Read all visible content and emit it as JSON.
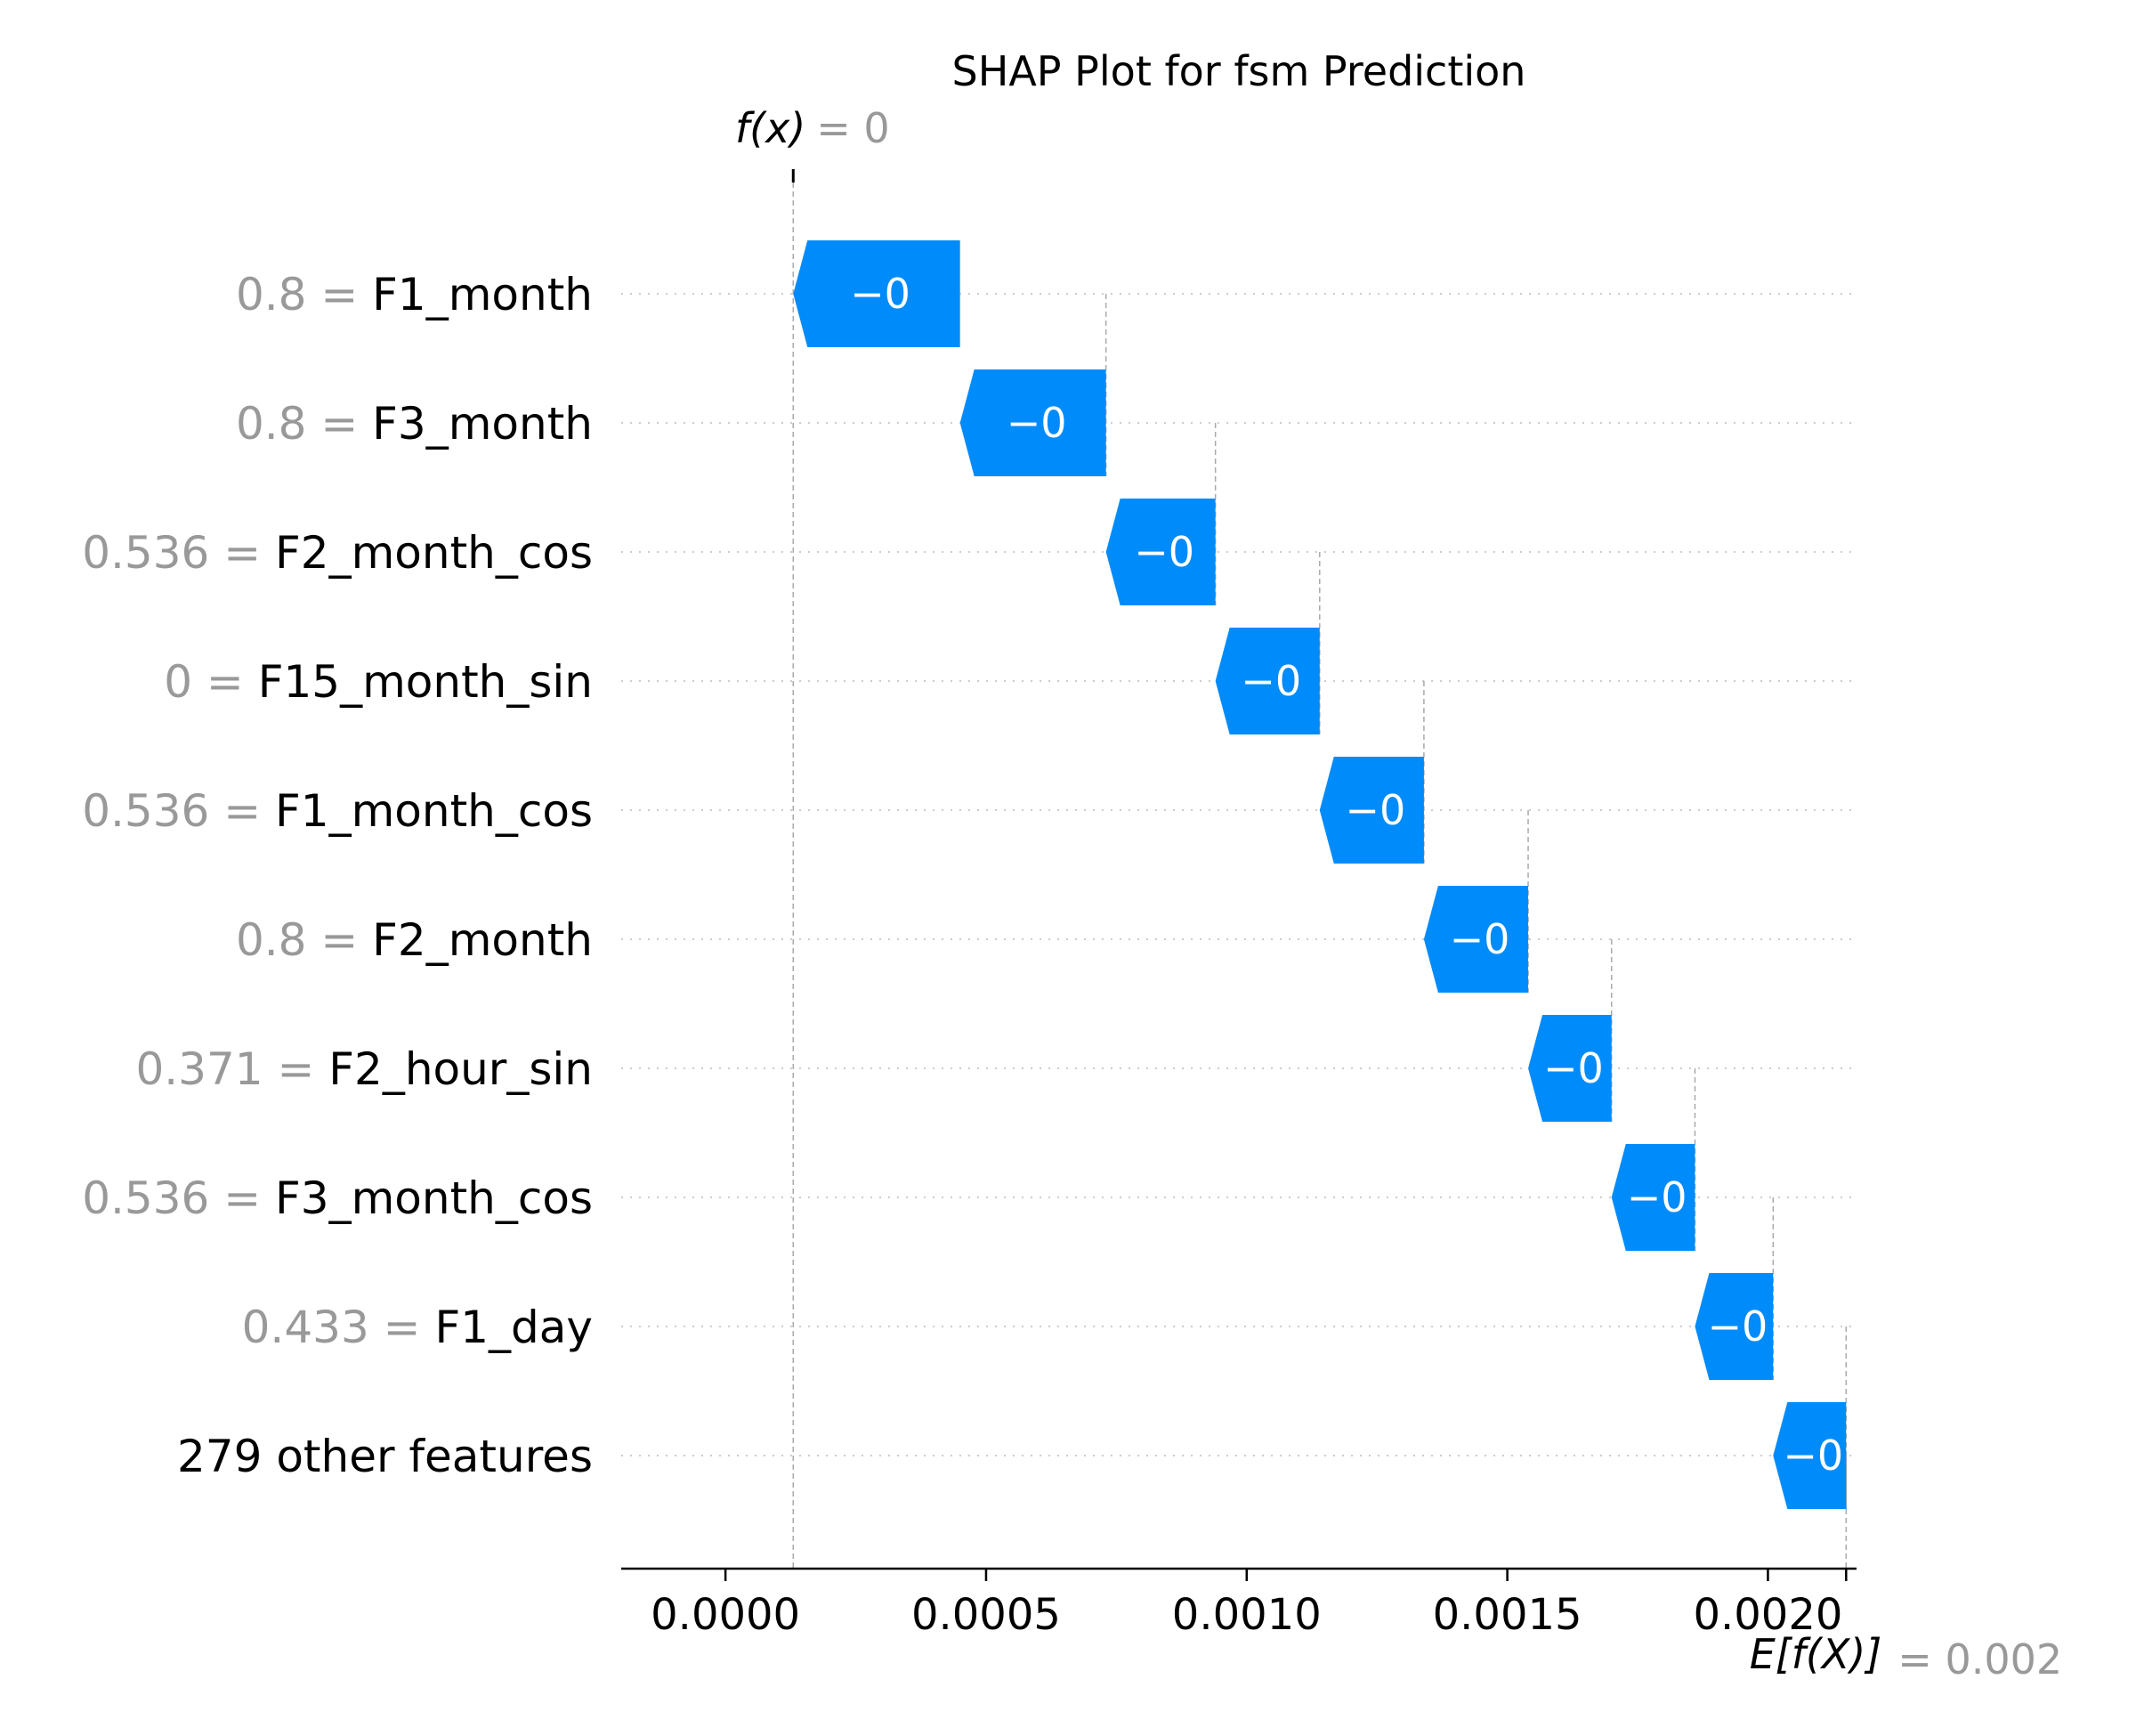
{
  "chart_data": {
    "type": "bar",
    "title": "SHAP Plot for fsm Prediction",
    "fx": {
      "label": "f(x)",
      "value": "= 0",
      "x": 0.00013
    },
    "base": {
      "label": "E[f(X)]",
      "value": "= 0.002",
      "x": 0.00215
    },
    "features": [
      {
        "value": "0.8",
        "name": "F1_month",
        "start": 0.00045,
        "end": 0.00013,
        "label": "−0"
      },
      {
        "value": "0.8",
        "name": "F3_month",
        "start": 0.00073,
        "end": 0.00045,
        "label": "−0"
      },
      {
        "value": "0.536",
        "name": "F2_month_cos",
        "start": 0.00094,
        "end": 0.00073,
        "label": "−0"
      },
      {
        "value": "0",
        "name": "F15_month_sin",
        "start": 0.00114,
        "end": 0.00094,
        "label": "−0"
      },
      {
        "value": "0.536",
        "name": "F1_month_cos",
        "start": 0.00134,
        "end": 0.00114,
        "label": "−0"
      },
      {
        "value": "0.8",
        "name": "F2_month",
        "start": 0.00154,
        "end": 0.00134,
        "label": "−0"
      },
      {
        "value": "0.371",
        "name": "F2_hour_sin",
        "start": 0.0017,
        "end": 0.00154,
        "label": "−0"
      },
      {
        "value": "0.536",
        "name": "F3_month_cos",
        "start": 0.00186,
        "end": 0.0017,
        "label": "−0"
      },
      {
        "value": "0.433",
        "name": "F1_day",
        "start": 0.00201,
        "end": 0.00186,
        "label": "−0"
      },
      {
        "value": "",
        "name": "279 other features",
        "start": 0.00215,
        "end": 0.00201,
        "label": "−0"
      }
    ],
    "xticks": [
      "0.0000",
      "0.0005",
      "0.0010",
      "0.0015",
      "0.0020"
    ],
    "xtick_values": [
      0,
      0.0005,
      0.001,
      0.0015,
      0.002
    ],
    "xlim": [
      -0.0002,
      0.00217
    ],
    "grid": true
  },
  "colors": {
    "negative": "#008bfb",
    "text_gray": "#999999",
    "grid": "#cccccc"
  }
}
